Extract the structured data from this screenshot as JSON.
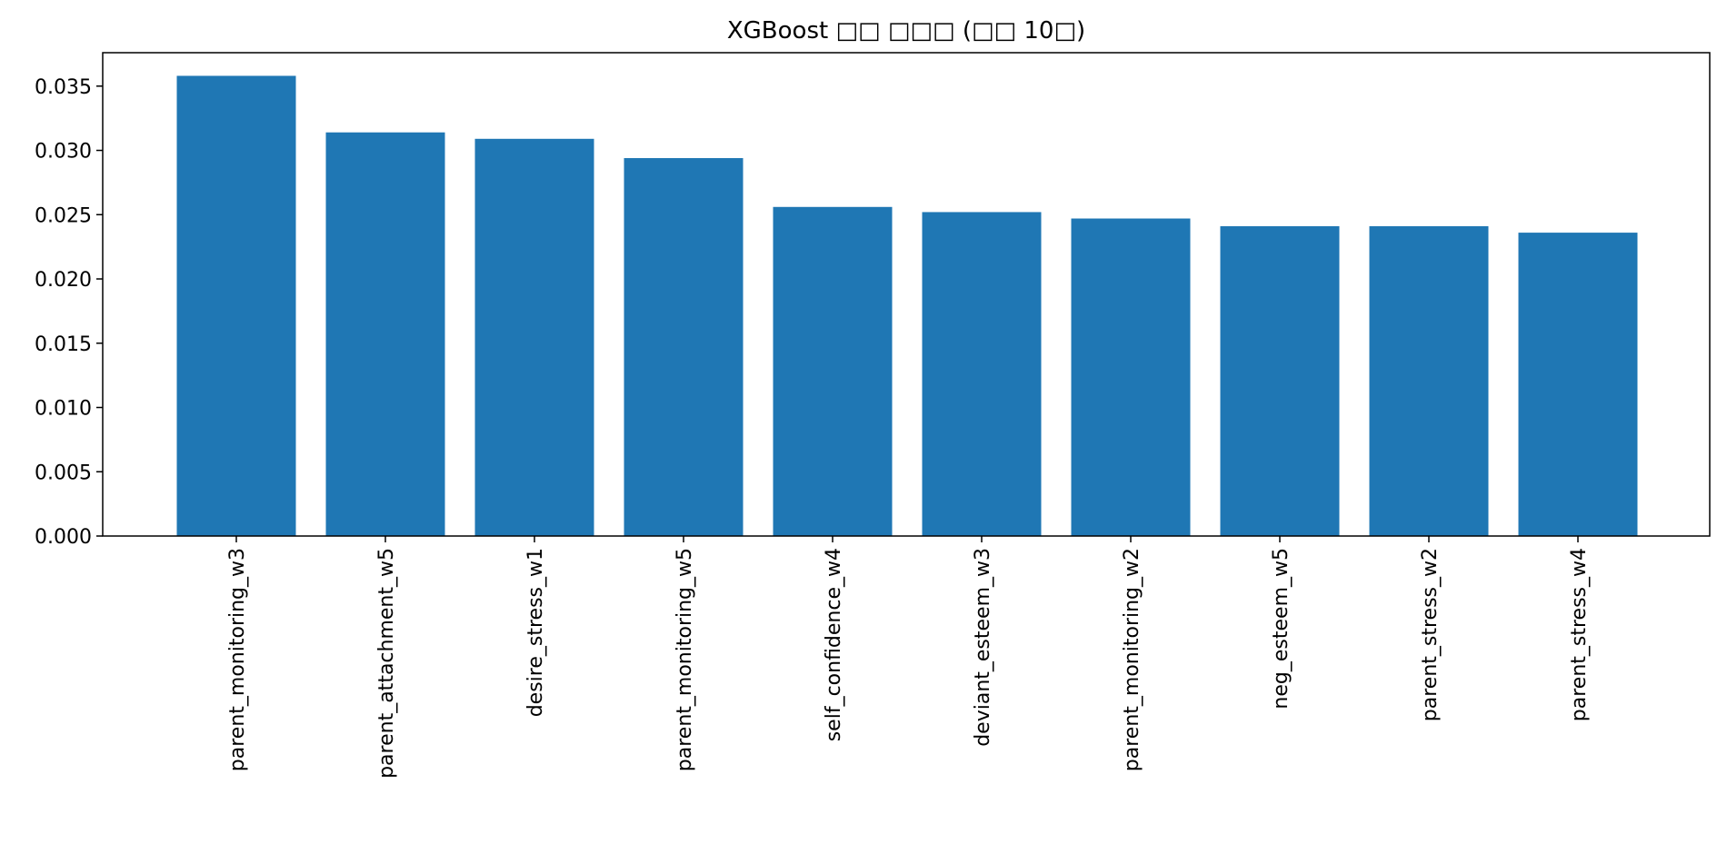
{
  "chart_data": {
    "type": "bar",
    "title": "XGBoost □□ □□□ (□□ 10□)",
    "xlabel": "",
    "ylabel": "",
    "categories": [
      "parent_monitoring_w3",
      "parent_attachment_w5",
      "desire_stress_w1",
      "parent_monitoring_w5",
      "self_confidence_w4",
      "deviant_esteem_w3",
      "parent_monitoring_w2",
      "neg_esteem_w5",
      "parent_stress_w2",
      "parent_stress_w4"
    ],
    "values": [
      0.0358,
      0.0314,
      0.0309,
      0.0294,
      0.0256,
      0.0252,
      0.0247,
      0.0241,
      0.0241,
      0.0236
    ],
    "ylim": [
      0,
      0.0376
    ],
    "yticks": [
      "0.000",
      "0.005",
      "0.010",
      "0.015",
      "0.020",
      "0.025",
      "0.030",
      "0.035"
    ],
    "ytick_values": [
      0,
      0.005,
      0.01,
      0.015,
      0.02,
      0.025,
      0.03,
      0.035
    ],
    "grid": false,
    "bar_color": "#1f77b4"
  }
}
